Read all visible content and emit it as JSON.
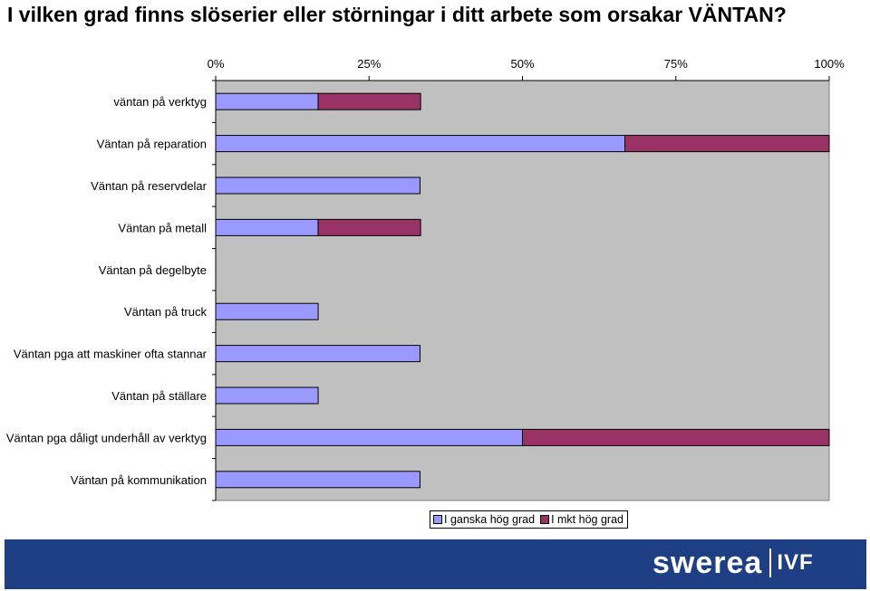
{
  "title": "I vilken grad finns slöserier eller störningar i ditt arbete som orsakar VÄNTAN?",
  "colors": {
    "series1": "#9999ff",
    "series2": "#993366",
    "plot_bg": "#c0c0c0",
    "footer_bg": "#1f3f84"
  },
  "legend": {
    "position": "bottom-right"
  },
  "logo": {
    "main": "swerea",
    "sub": "IVF"
  },
  "chart_data": {
    "type": "bar",
    "orientation": "horizontal",
    "stacked": true,
    "title": "I vilken grad finns slöserier eller störningar i ditt arbete som orsakar VÄNTAN?",
    "xlim": [
      0,
      100
    ],
    "x_ticks": [
      "0%",
      "25%",
      "50%",
      "75%",
      "100%"
    ],
    "x_tick_values": [
      0,
      25,
      50,
      75,
      100
    ],
    "categories": [
      "väntan på verktyg",
      "Väntan på reparation",
      "Väntan på reservdelar",
      "Väntan på metall",
      "Väntan på degelbyte",
      "Väntan på truck",
      "Väntan pga att maskiner ofta stannar",
      "Väntan på ställare",
      "Väntan pga dåligt underhåll av verktyg",
      "Väntan på kommunikation"
    ],
    "series": [
      {
        "name": "I ganska hög grad",
        "values": [
          16.7,
          66.7,
          33.3,
          16.7,
          0,
          16.7,
          33.3,
          16.7,
          50,
          33.3
        ]
      },
      {
        "name": "I mkt hög grad",
        "values": [
          16.7,
          33.3,
          0,
          16.7,
          0,
          0,
          0,
          0,
          50,
          0
        ]
      }
    ]
  }
}
